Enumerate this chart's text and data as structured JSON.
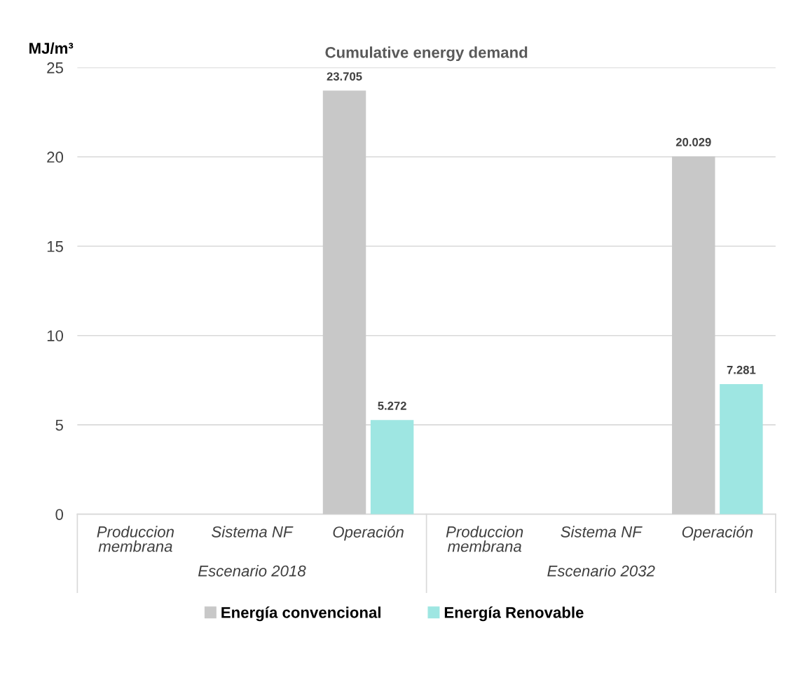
{
  "chart_data": {
    "type": "bar",
    "title": "Cumulative energy demand",
    "ylabel": "MJ/m³",
    "categories": [
      "Produccion\nmembrana",
      "Sistema NF",
      "Operación",
      "Produccion\nmembrana",
      "Sistema NF",
      "Operación"
    ],
    "annotations": [
      "Escenario 2018",
      "Escenario 2032"
    ],
    "series": [
      {
        "name": "Energía convencional",
        "color": "#c8c8c8",
        "values": [
          null,
          null,
          23.705,
          null,
          null,
          20.029
        ],
        "value_labels": [
          null,
          null,
          "23.705",
          null,
          null,
          "20.029"
        ]
      },
      {
        "name": "Energía Renovable",
        "color": "#9ee6e2",
        "values": [
          0,
          0,
          5.272,
          0,
          0,
          7.281
        ],
        "value_labels": [
          null,
          null,
          "5.272",
          null,
          null,
          "7.281"
        ]
      }
    ],
    "ylim": [
      0,
      25
    ],
    "yticks": [
      0,
      5,
      10,
      15,
      20,
      25
    ],
    "grid": "y",
    "legend": "bottom"
  }
}
